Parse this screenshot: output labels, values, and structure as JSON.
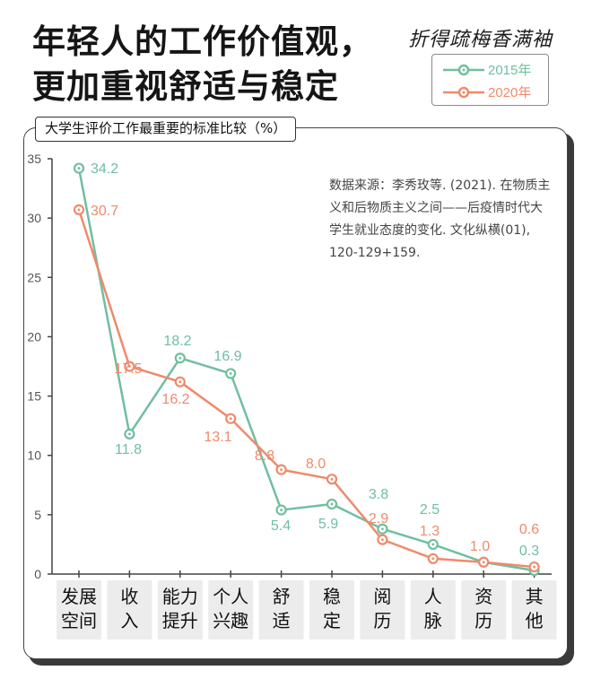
{
  "title": {
    "line1": "年轻人的工作价值观，",
    "line2": "更加重视舒适与稳定"
  },
  "signature": "折得疏梅香满袖",
  "colors": {
    "series_2015": "#6fbf9f",
    "series_2020": "#ef8a6c",
    "axis": "#444444",
    "tick_bg": "#ececec"
  },
  "chart_data": {
    "type": "line",
    "title": "大学生评价工作最重要的标准比较（%）",
    "categories": [
      "发展\n空间",
      "收\n入",
      "能力\n提升",
      "个人\n兴趣",
      "舒\n适",
      "稳\n定",
      "阅\n历",
      "人\n脉",
      "资\n历",
      "其\n他"
    ],
    "series": [
      {
        "name": "2015年",
        "values": [
          34.2,
          11.8,
          18.2,
          16.9,
          5.4,
          5.9,
          3.8,
          2.5,
          1.0,
          0.3
        ]
      },
      {
        "name": "2020年",
        "values": [
          30.7,
          17.5,
          16.2,
          13.1,
          8.8,
          8.0,
          2.9,
          1.3,
          1.0,
          0.6
        ]
      }
    ],
    "y_ticks": [
      "35",
      "30",
      "25",
      "20",
      "15",
      "10",
      "5",
      "0"
    ],
    "ylim": [
      0,
      35
    ],
    "grid": false,
    "legend_position": "top-right",
    "source_note": "数据来源：李秀玫等. (2021). 在物质主义和后物质主义之间——后疫情时代大学生就业态度的变化. 文化纵横(01), 120-129+159."
  }
}
